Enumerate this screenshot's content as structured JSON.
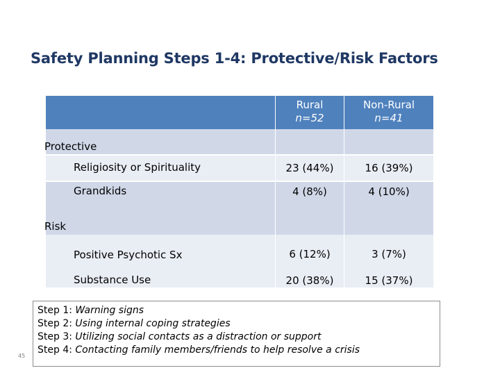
{
  "title": "Safety Planning Steps 1-4: Protective/Risk Factors",
  "columns": {
    "rural": {
      "name": "Rural",
      "n": "n=52"
    },
    "non_rural": {
      "name": "Non-Rural",
      "n": "n=41"
    }
  },
  "sections": [
    {
      "label": "Protective",
      "rows": [
        {
          "label": "Religiosity or Spirituality",
          "rural": "23 (44%)",
          "non_rural": "16 (39%)"
        },
        {
          "label": "Grandkids",
          "rural": "4 (8%)",
          "non_rural": "4 (10%)"
        }
      ]
    },
    {
      "label": "Risk",
      "rows": [
        {
          "label": "Positive Psychotic Sx",
          "rural": "6 (12%)",
          "non_rural": "3 (7%)"
        },
        {
          "label": "Substance Use",
          "rural": "20 (38%)",
          "non_rural": "15 (37%)"
        }
      ]
    }
  ],
  "steps": [
    {
      "key": "Step 1:",
      "value": "Warning signs"
    },
    {
      "key": "Step 2:",
      "value": "Using internal coping strategies"
    },
    {
      "key": "Step 3:",
      "value": "Utilizing social contacts as a distraction or support"
    },
    {
      "key": "Step 4:",
      "value": "Contacting family members/friends to help resolve a crisis"
    }
  ],
  "slide_number": "45",
  "colors": {
    "title": "#1f3864",
    "header": "#4f81bd",
    "row_dark": "#d0d8e8",
    "row_light": "#e9edf4"
  }
}
